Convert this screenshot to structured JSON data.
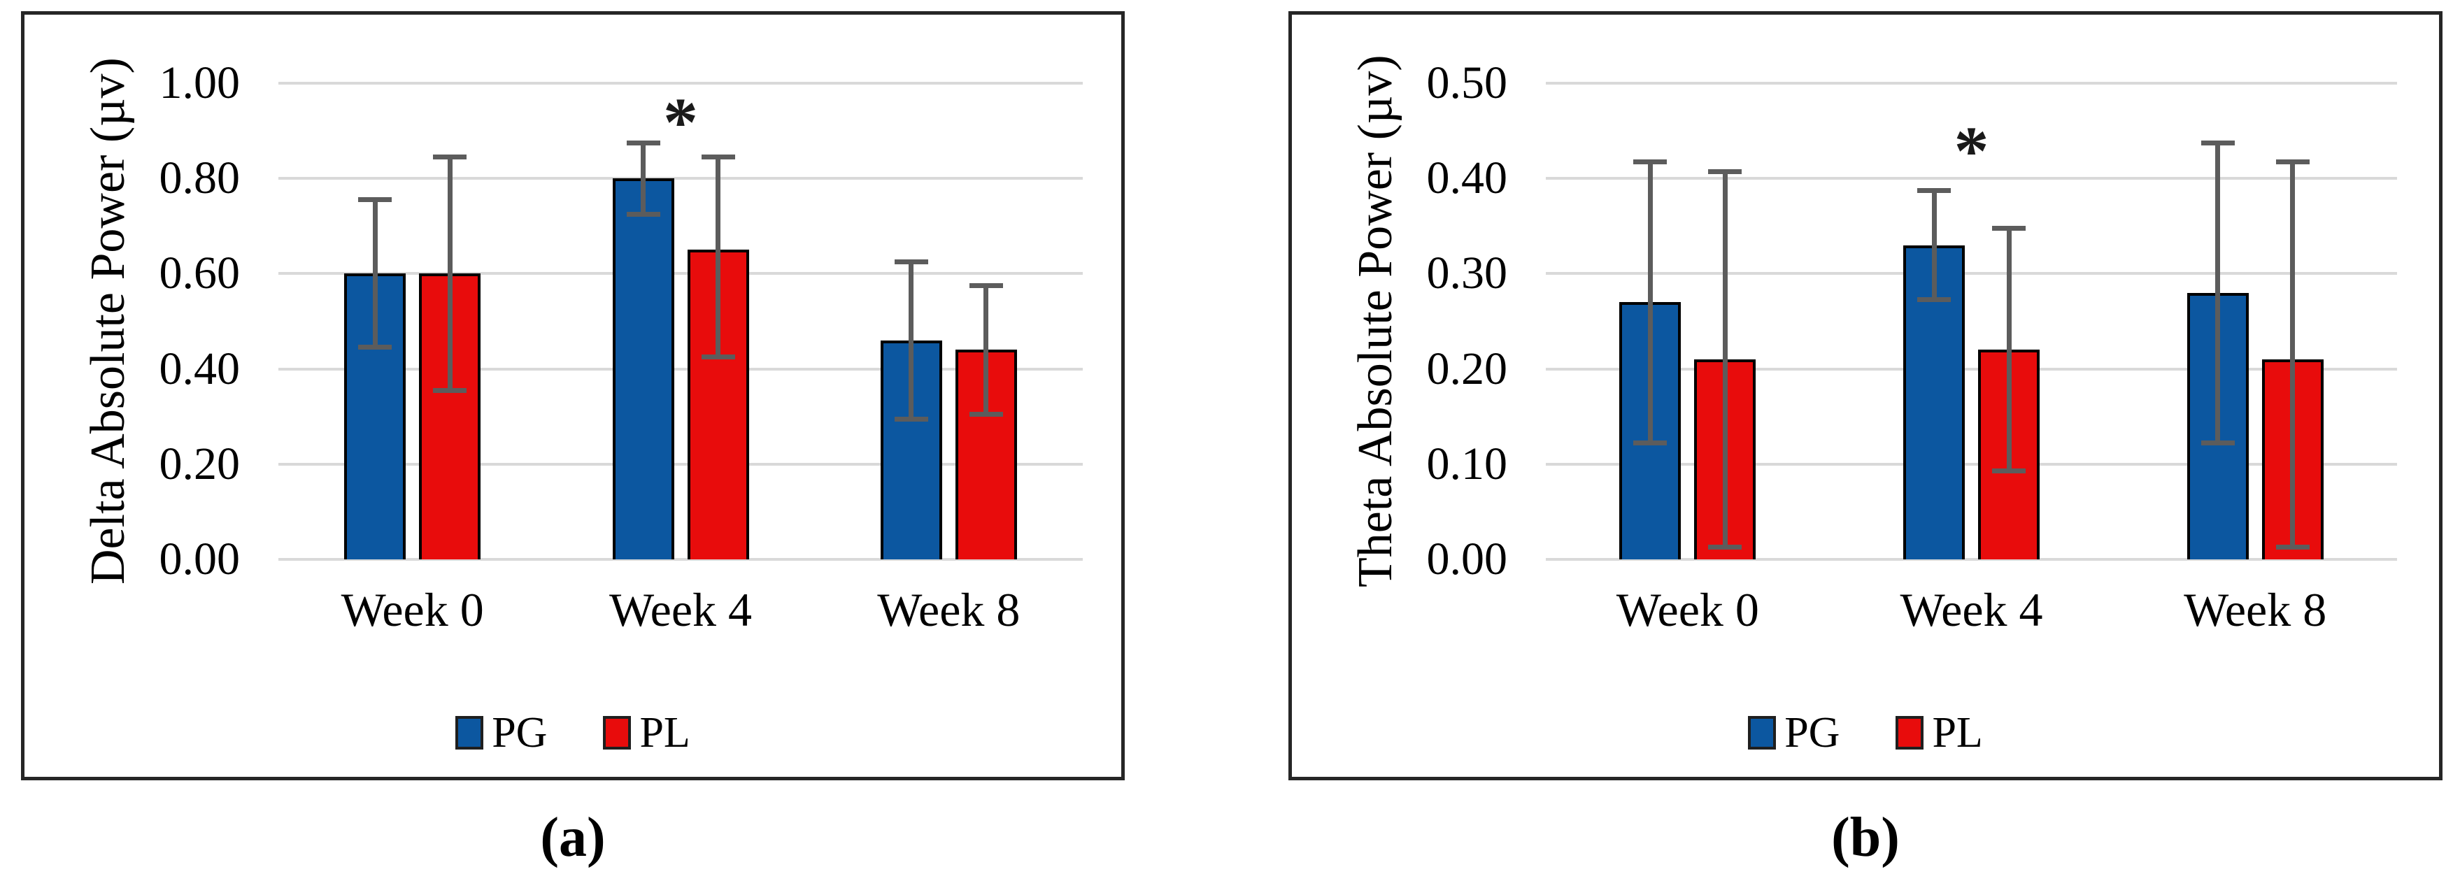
{
  "figure": {
    "background": "#ffffff",
    "error_bar_color": "#5c5c5c",
    "gridline_color": "#d9d9d9",
    "panel_border_color": "#262626"
  },
  "chart_data": [
    {
      "type": "bar",
      "caption": "(a)",
      "ylabel": "Delta Absolute Power (µv)",
      "categories": [
        "Week 0",
        "Week 4",
        "Week 8"
      ],
      "series": [
        {
          "name": "PG",
          "color": "#0c57a0",
          "values": [
            0.6,
            0.8,
            0.46
          ],
          "err_low": [
            0.44,
            0.72,
            0.29
          ],
          "err_high": [
            0.76,
            0.88,
            0.63
          ]
        },
        {
          "name": "PL",
          "color": "#e80c0c",
          "values": [
            0.6,
            0.65,
            0.44
          ],
          "err_low": [
            0.35,
            0.42,
            0.3
          ],
          "err_high": [
            0.85,
            0.85,
            0.58
          ]
        }
      ],
      "ylim": [
        0.0,
        1.0
      ],
      "ytick_step": 0.2,
      "ytick_labels": [
        "1.00",
        "0.80",
        "0.60",
        "0.40",
        "0.20",
        "0.00"
      ],
      "grid": true,
      "legend_position": "bottom",
      "significance": [
        {
          "category_index": 1,
          "symbol": "*",
          "y": 0.94
        }
      ]
    },
    {
      "type": "bar",
      "caption": "(b)",
      "ylabel": "Theta Absolute Power (µv)",
      "categories": [
        "Week 0",
        "Week 4",
        "Week 8"
      ],
      "series": [
        {
          "name": "PG",
          "color": "#0c57a0",
          "values": [
            0.27,
            0.33,
            0.28
          ],
          "err_low": [
            0.12,
            0.27,
            0.12
          ],
          "err_high": [
            0.42,
            0.39,
            0.44
          ]
        },
        {
          "name": "PL",
          "color": "#e80c0c",
          "values": [
            0.21,
            0.22,
            0.21
          ],
          "err_low": [
            0.01,
            0.09,
            0.01
          ],
          "err_high": [
            0.41,
            0.35,
            0.42
          ]
        }
      ],
      "ylim": [
        0.0,
        0.5
      ],
      "ytick_step": 0.1,
      "ytick_labels": [
        "0.50",
        "0.40",
        "0.30",
        "0.20",
        "0.10",
        "0.00"
      ],
      "grid": true,
      "legend_position": "bottom",
      "significance": [
        {
          "category_index": 1,
          "symbol": "*",
          "y": 0.44
        }
      ]
    }
  ]
}
